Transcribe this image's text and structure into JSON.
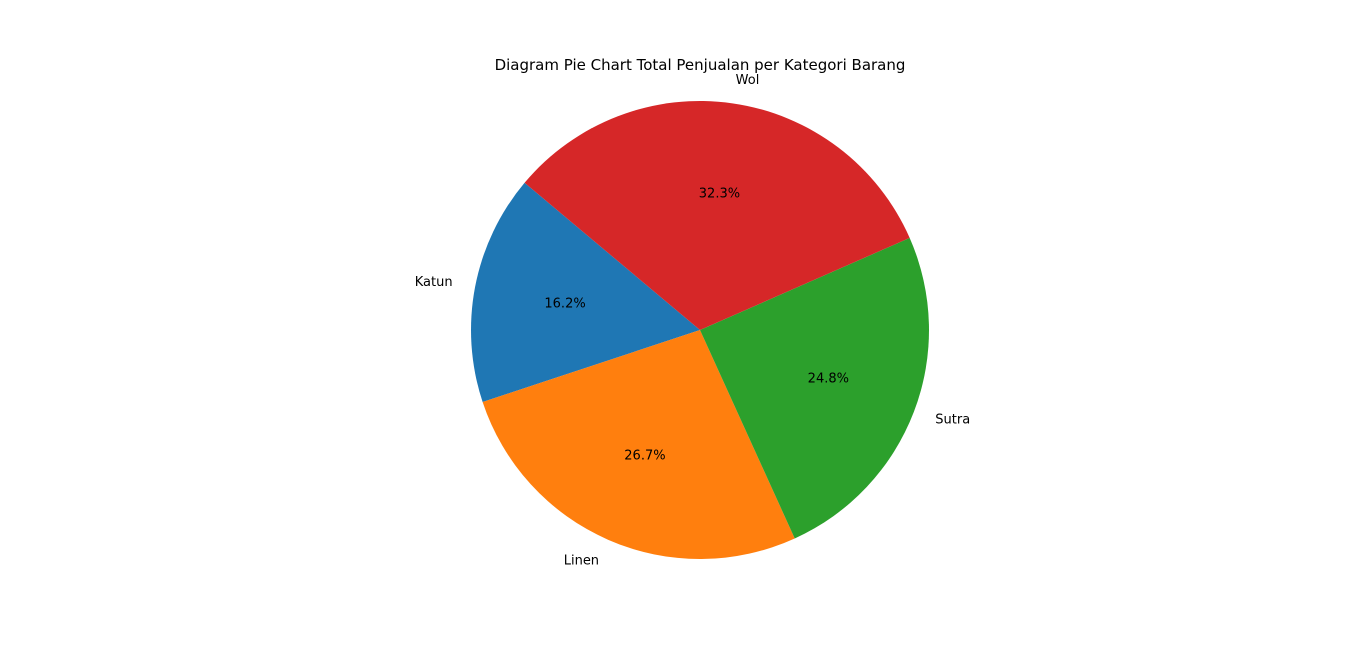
{
  "chart_data": {
    "type": "pie",
    "title": "Diagram Pie Chart Total Penjualan per Kategori Barang",
    "slices": [
      {
        "label": "Katun",
        "percent": 16.2,
        "display": "16.2%",
        "color": "#1f77b4"
      },
      {
        "label": "Linen",
        "percent": 26.7,
        "display": "26.7%",
        "color": "#ff7f0e"
      },
      {
        "label": "Sutra",
        "percent": 24.8,
        "display": "24.8%",
        "color": "#2ca02c"
      },
      {
        "label": "Wol",
        "percent": 32.3,
        "display": "32.3%",
        "color": "#d62728"
      }
    ],
    "start_angle_deg": 140,
    "direction": "counterclockwise"
  }
}
